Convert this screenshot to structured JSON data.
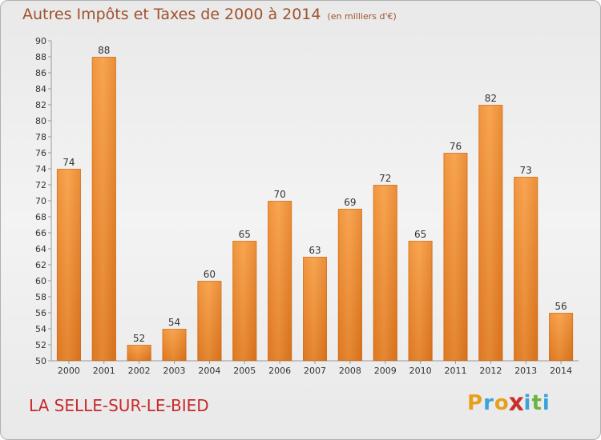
{
  "chart_data": {
    "type": "bar",
    "title": "Autres Impôts et Taxes de 2000 à 2014",
    "unit": "(en milliers d'€)",
    "categories": [
      "2000",
      "2001",
      "2002",
      "2003",
      "2004",
      "2005",
      "2006",
      "2007",
      "2008",
      "2009",
      "2010",
      "2011",
      "2012",
      "2013",
      "2014"
    ],
    "values": [
      74,
      88,
      52,
      54,
      60,
      65,
      70,
      63,
      69,
      72,
      65,
      76,
      82,
      73,
      56
    ],
    "ylim": [
      50,
      90
    ],
    "yticks": [
      50,
      52,
      54,
      56,
      58,
      60,
      62,
      64,
      66,
      68,
      70,
      72,
      74,
      76,
      78,
      80,
      82,
      84,
      86,
      88,
      90
    ],
    "grid": false,
    "bar_color": "#f0913a"
  },
  "footer": {
    "commune": "LA SELLE-SUR-LE-BIED",
    "logo": [
      "P",
      "r",
      "o",
      "x",
      "i",
      "t",
      "i"
    ],
    "logo_colors": [
      "#e6a01e",
      "#3aa3dc",
      "#e6a01e",
      "#c9302c",
      "#3aa3dc",
      "#6db33f",
      "#3aa3dc"
    ]
  }
}
